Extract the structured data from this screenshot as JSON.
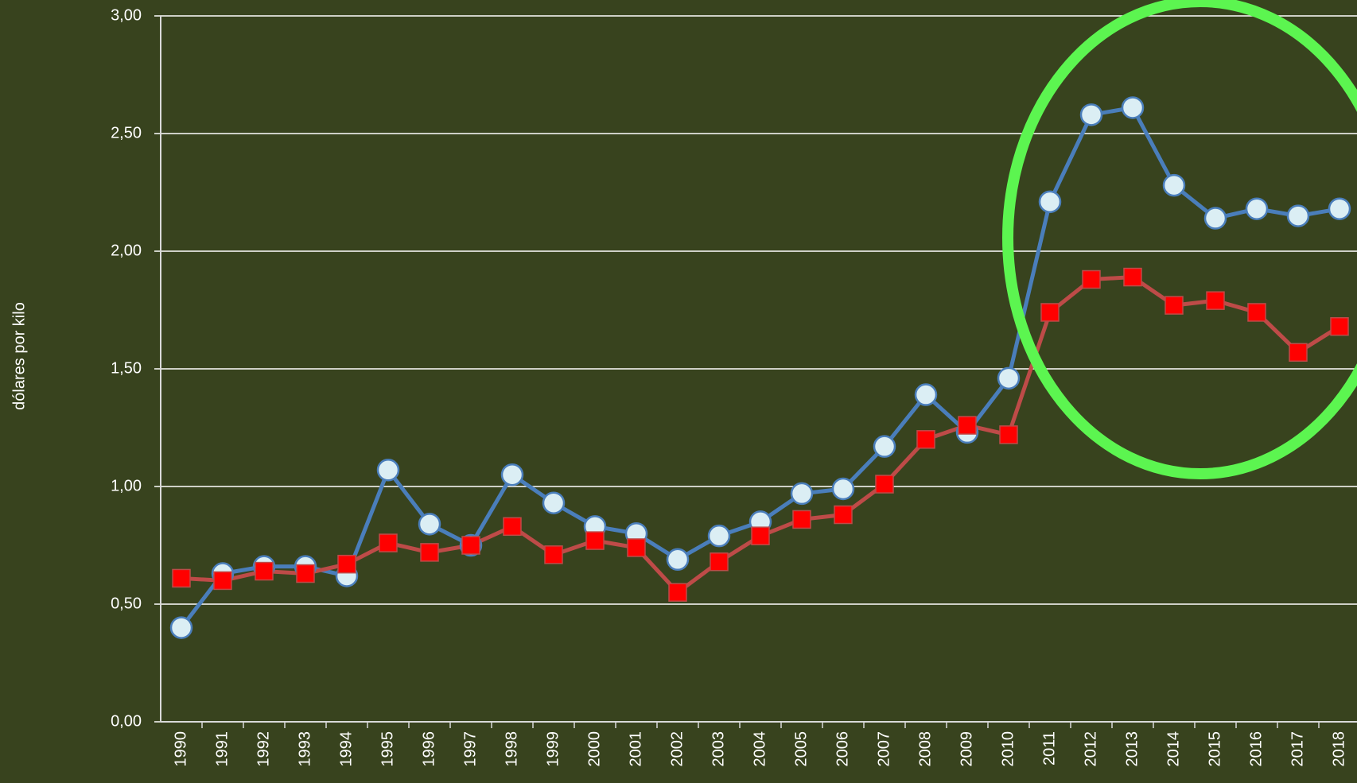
{
  "chart_data": {
    "type": "line",
    "y_label": "dólares por kilo",
    "categories": [
      "1990",
      "1991",
      "1992",
      "1993",
      "1994",
      "1995",
      "1996",
      "1997",
      "1998",
      "1999",
      "2000",
      "2001",
      "2002",
      "2003",
      "2004",
      "2005",
      "2006",
      "2007",
      "2008",
      "2009",
      "2010",
      "2011",
      "2012",
      "2013",
      "2014",
      "2015",
      "2016",
      "2017",
      "2018"
    ],
    "series": [
      {
        "color": "#4a7ebb",
        "marker": "circle",
        "marker_color": "#dbeef4",
        "values": [
          0.4,
          0.63,
          0.66,
          0.66,
          0.62,
          1.07,
          0.84,
          0.75,
          1.05,
          0.93,
          0.83,
          0.8,
          0.69,
          0.79,
          0.85,
          0.97,
          0.99,
          1.17,
          1.39,
          1.23,
          1.46,
          2.21,
          2.58,
          2.61,
          2.28,
          2.14,
          2.18,
          2.15,
          2.18
        ]
      },
      {
        "color": "#be4b48",
        "marker": "square",
        "marker_color": "#ff0000",
        "values": [
          0.61,
          0.6,
          0.64,
          0.63,
          0.67,
          0.76,
          0.72,
          0.75,
          0.83,
          0.71,
          0.77,
          0.74,
          0.55,
          0.68,
          0.79,
          0.86,
          0.88,
          1.01,
          1.2,
          1.26,
          1.22,
          1.74,
          1.88,
          1.89,
          1.77,
          1.79,
          1.74,
          1.57,
          1.68
        ]
      }
    ],
    "ylim": [
      0,
      3
    ],
    "yticks": [
      {
        "value": 0,
        "label": "0,00"
      },
      {
        "value": 0.5,
        "label": "0,50"
      },
      {
        "value": 1,
        "label": "1,00"
      },
      {
        "value": 1.5,
        "label": "1,50"
      },
      {
        "value": 2,
        "label": "2,00"
      },
      {
        "value": 2.5,
        "label": "2,50"
      },
      {
        "value": 3,
        "label": "3,00"
      }
    ],
    "grid": true
  }
}
